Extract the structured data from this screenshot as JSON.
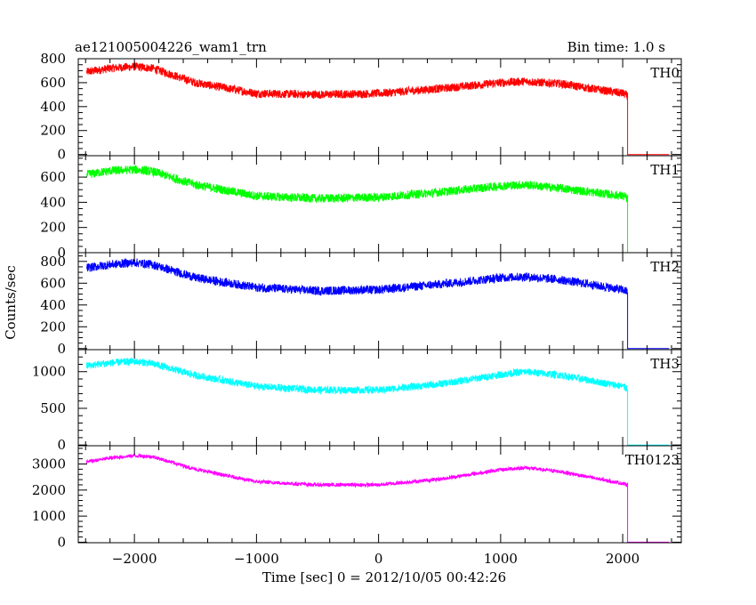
{
  "header": {
    "title": "ae121005004226_wam1_trn",
    "bin_time": "Bin time: 1.0 s"
  },
  "chart_data": {
    "type": "line",
    "xlabel": "Time [sec] 0 = 2012/10/05 00:42:26",
    "ylabel": "Counts/sec",
    "xlim": [
      -2460,
      2480
    ],
    "x_ticks": [
      -2000,
      -1000,
      0,
      1000,
      2000
    ],
    "x_tick_labels": [
      "−2000",
      "−1000",
      "0",
      "1000",
      "2000"
    ],
    "x_minor_step": 200,
    "data_end_x": 2040,
    "zero_until_x": 2380,
    "grid": false,
    "panels": [
      {
        "name": "TH0",
        "color": "#ff0000",
        "ylim": [
          -10,
          800
        ],
        "y_ticks": [
          0,
          200,
          400,
          600,
          800
        ],
        "y_minor_step": 50,
        "noise": 35,
        "x": [
          -2390,
          -2200,
          -2000,
          -1850,
          -1500,
          -1000,
          -500,
          0,
          500,
          1000,
          1200,
          1500,
          2000,
          2040
        ],
        "values": [
          690,
          720,
          735,
          720,
          600,
          510,
          500,
          510,
          550,
          600,
          610,
          590,
          510,
          490
        ]
      },
      {
        "name": "TH1",
        "color": "#00ff00",
        "ylim": [
          0,
          770
        ],
        "y_ticks": [
          0,
          200,
          400,
          600
        ],
        "y_minor_step": 50,
        "noise": 35,
        "x": [
          -2390,
          -2200,
          -2000,
          -1850,
          -1500,
          -1000,
          -500,
          0,
          500,
          1000,
          1200,
          1500,
          2000,
          2040
        ],
        "values": [
          620,
          650,
          660,
          645,
          540,
          450,
          430,
          440,
          480,
          530,
          540,
          510,
          450,
          430
        ]
      },
      {
        "name": "TH2",
        "color": "#0000ff",
        "ylim": [
          -10,
          880
        ],
        "y_ticks": [
          0,
          200,
          400,
          600,
          800
        ],
        "y_minor_step": 50,
        "noise": 40,
        "x": [
          -2390,
          -2200,
          -2000,
          -1850,
          -1500,
          -1000,
          -500,
          0,
          500,
          1000,
          1200,
          1500,
          2000,
          2040
        ],
        "values": [
          740,
          770,
          790,
          770,
          650,
          560,
          530,
          540,
          590,
          650,
          660,
          630,
          540,
          520
        ]
      },
      {
        "name": "TH3",
        "color": "#00ffff",
        "ylim": [
          -10,
          1300
        ],
        "y_ticks": [
          0,
          500,
          1000
        ],
        "y_minor_step": 100,
        "noise": 50,
        "x": [
          -2390,
          -2200,
          -2000,
          -1850,
          -1500,
          -1000,
          -500,
          0,
          500,
          1000,
          1200,
          1500,
          2000,
          2040
        ],
        "values": [
          1080,
          1120,
          1140,
          1110,
          950,
          800,
          750,
          750,
          830,
          960,
          1000,
          950,
          800,
          770
        ]
      },
      {
        "name": "TH0123",
        "color": "#ff00ff",
        "ylim": [
          -20,
          3700
        ],
        "y_ticks": [
          0,
          1000,
          2000,
          3000
        ],
        "y_minor_step": 200,
        "noise": 70,
        "x": [
          -2390,
          -2200,
          -2000,
          -1850,
          -1500,
          -1000,
          -500,
          0,
          500,
          1000,
          1200,
          1500,
          2000,
          2040
        ],
        "values": [
          3080,
          3230,
          3320,
          3280,
          2800,
          2320,
          2200,
          2200,
          2420,
          2780,
          2860,
          2700,
          2250,
          2200
        ]
      }
    ]
  }
}
